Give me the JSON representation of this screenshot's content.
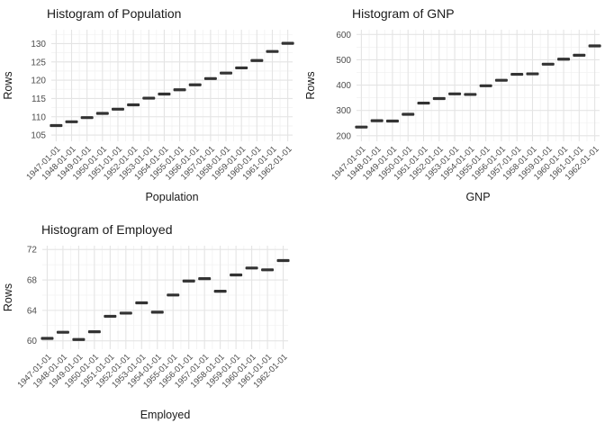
{
  "page": {
    "background": "#ffffff"
  },
  "style": {
    "point_color": "#333333",
    "grid_major_color": "#e4e4e4",
    "grid_minor_color": "#f2f2f2",
    "title_color": "#1a1a1a",
    "axis_title_color": "#1a1a1a",
    "tick_label_color": "#4d4d4d"
  },
  "chart_data": [
    {
      "type": "scatter",
      "marker": "horizontal-dash",
      "title": "Histogram of Population",
      "xlabel": "Population",
      "ylabel": "Rows",
      "grid": true,
      "legend": false,
      "categories": [
        "1947-01-01",
        "1948-01-01",
        "1949-01-01",
        "1950-01-01",
        "1951-01-01",
        "1952-01-01",
        "1953-01-01",
        "1954-01-01",
        "1955-01-01",
        "1956-01-01",
        "1957-01-01",
        "1958-01-01",
        "1959-01-01",
        "1960-01-01",
        "1961-01-01",
        "1962-01-01"
      ],
      "values": [
        107.608,
        108.632,
        109.773,
        110.929,
        112.075,
        113.27,
        115.094,
        116.219,
        117.388,
        118.734,
        120.445,
        121.95,
        123.366,
        125.368,
        127.852,
        130.081
      ],
      "yticks": [
        105,
        110,
        115,
        120,
        125,
        130
      ],
      "ylim": [
        103.3,
        133.8
      ]
    },
    {
      "type": "scatter",
      "marker": "horizontal-dash",
      "title": "Histogram of GNP",
      "xlabel": "GNP",
      "ylabel": "Rows",
      "grid": true,
      "legend": false,
      "categories": [
        "1947-01-01",
        "1948-01-01",
        "1949-01-01",
        "1950-01-01",
        "1951-01-01",
        "1952-01-01",
        "1953-01-01",
        "1954-01-01",
        "1955-01-01",
        "1956-01-01",
        "1957-01-01",
        "1958-01-01",
        "1959-01-01",
        "1960-01-01",
        "1961-01-01",
        "1962-01-01"
      ],
      "values": [
        234.289,
        259.426,
        258.054,
        284.599,
        328.975,
        346.999,
        365.385,
        363.112,
        397.469,
        419.18,
        442.769,
        444.546,
        482.704,
        502.601,
        518.173,
        554.894
      ],
      "yticks": [
        200,
        300,
        400,
        500,
        600
      ],
      "ylim": [
        178,
        619
      ]
    },
    {
      "type": "scatter",
      "marker": "horizontal-dash",
      "title": "Histogram of Employed",
      "xlabel": "Employed",
      "ylabel": "Rows",
      "grid": true,
      "legend": false,
      "categories": [
        "1947-01-01",
        "1948-01-01",
        "1949-01-01",
        "1950-01-01",
        "1951-01-01",
        "1952-01-01",
        "1953-01-01",
        "1954-01-01",
        "1955-01-01",
        "1956-01-01",
        "1957-01-01",
        "1958-01-01",
        "1959-01-01",
        "1960-01-01",
        "1961-01-01",
        "1962-01-01"
      ],
      "values": [
        60.323,
        61.122,
        60.171,
        61.187,
        63.221,
        63.639,
        64.989,
        63.761,
        66.019,
        67.857,
        68.169,
        66.513,
        68.655,
        69.564,
        69.331,
        70.551
      ],
      "yticks": [
        60,
        64,
        68,
        72
      ],
      "ylim": [
        58.9,
        72.5
      ]
    }
  ]
}
